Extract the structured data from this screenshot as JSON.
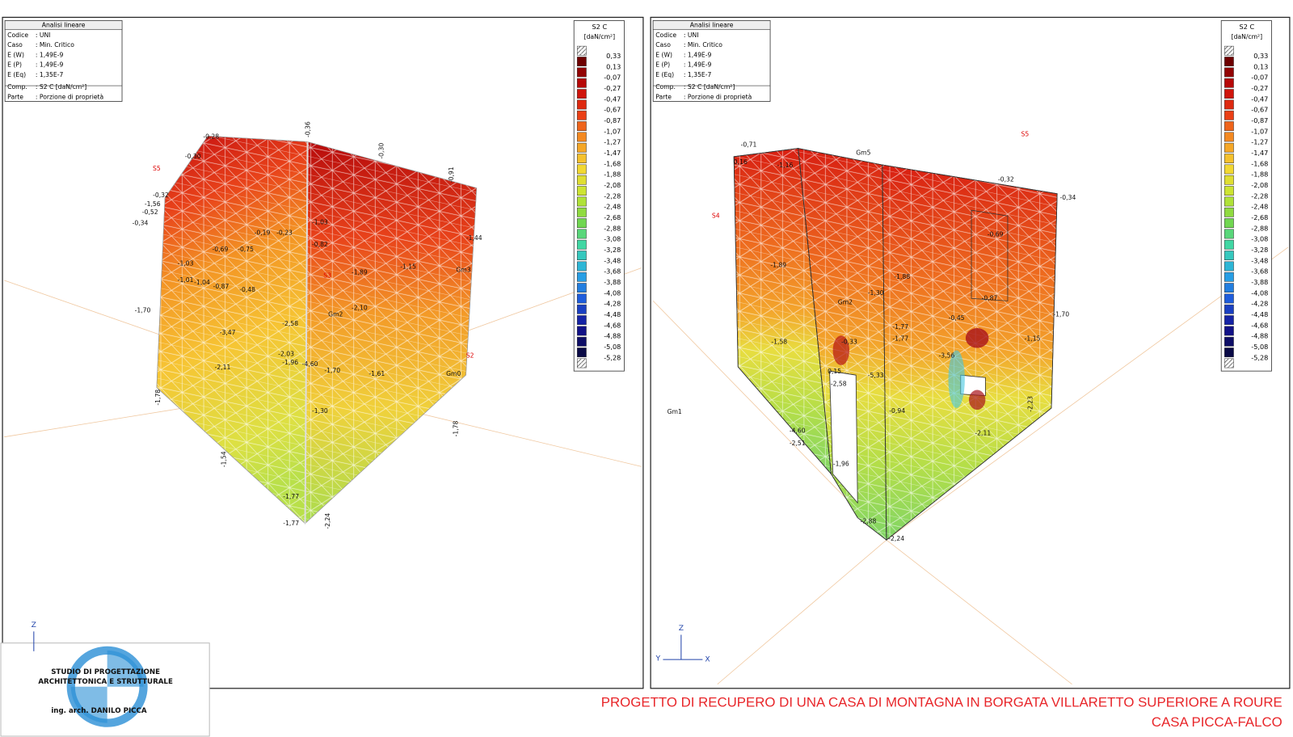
{
  "panels": [
    {
      "info": {
        "title": "Analisi lineare",
        "rows": [
          [
            "Codice",
            ": UNI"
          ],
          [
            "Caso",
            ": Min. Critico"
          ],
          [
            "E (W)",
            ": 1,49E-9"
          ],
          [
            "E (P)",
            ": 1,49E-9"
          ],
          [
            "E (Eq)",
            ": 1,35E-7"
          ],
          [
            "Comp.",
            ": S2 C [daN/cm²]"
          ],
          [
            "Parte",
            ": Porzione di proprietà"
          ]
        ]
      },
      "legend": {
        "title": "S2 C",
        "unit": "[daN/cm²]",
        "levels": [
          "0,33",
          "0,13",
          "-0,07",
          "-0,27",
          "-0,47",
          "-0,67",
          "-0,87",
          "-1,07",
          "-1,27",
          "-1,47",
          "-1,68",
          "-1,88",
          "-2,08",
          "-2,28",
          "-2,48",
          "-2,68",
          "-2,88",
          "-3,08",
          "-3,28",
          "-3,48",
          "-3,68",
          "-3,88",
          "-4,08",
          "-4,28",
          "-4,48",
          "-4,68",
          "-4,88",
          "-5,08",
          "-5,28"
        ]
      },
      "labels": [
        "-0,28",
        "-0,30",
        "S5",
        "-0,32",
        "-1,56",
        "-0,52",
        "-0,34",
        "-0,69",
        "-0,75",
        "-0,19",
        "-0,23",
        "-1,03",
        "-0,82",
        "-1,03",
        "-1,01",
        "-1,04",
        "-0,87",
        "-0,48",
        "S3",
        "-1,89",
        "-1,15",
        "-1,70",
        "-2,58",
        "-2,10",
        "Gm2",
        "-3,47",
        "-2,11",
        "-2,03",
        "-1,96",
        "-4,60",
        "-1,70",
        "-1,61",
        "-1,30",
        "Gm3",
        "-1,44",
        "Gm0",
        "S2",
        "-1,77",
        "-1,77",
        "-1,78",
        "-1,54",
        "-2,24",
        "-1,78",
        "-0,36",
        "-0,30",
        "-0,91"
      ],
      "axes": [
        "Z"
      ]
    },
    {
      "info": {
        "title": "Analisi lineare",
        "rows": [
          [
            "Codice",
            ": UNI"
          ],
          [
            "Caso",
            ": Min. Critico"
          ],
          [
            "E (W)",
            ": 1,49E-9"
          ],
          [
            "E (P)",
            ": 1,49E-9"
          ],
          [
            "E (Eq)",
            ": 1,35E-7"
          ],
          [
            "Comp.",
            ": S2 C [daN/cm²]"
          ],
          [
            "Parte",
            ": Porzione di proprietà"
          ]
        ]
      },
      "legend": {
        "title": "S2 C",
        "unit": "[daN/cm²]",
        "levels": [
          "0,33",
          "0,13",
          "-0,07",
          "-0,27",
          "-0,47",
          "-0,67",
          "-0,87",
          "-1,07",
          "-1,27",
          "-1,47",
          "-1,68",
          "-1,88",
          "-2,08",
          "-2,28",
          "-2,48",
          "-2,68",
          "-2,88",
          "-3,08",
          "-3,28",
          "-3,48",
          "-3,68",
          "-3,88",
          "-4,08",
          "-4,28",
          "-4,48",
          "-4,68",
          "-4,88",
          "-5,08",
          "-5,28"
        ]
      },
      "labels": [
        "-0,71",
        "0,16",
        "-1,16",
        "Gm5",
        "S5",
        "-0,32",
        "-0,34",
        "S4",
        "-1,89",
        "Gm2",
        "-0,33",
        "-1,30",
        "-1,88",
        "-0,69",
        "-0,87",
        "-0,45",
        "-1,70",
        "-1,77",
        "-1,77",
        "-3,56",
        "-1,15",
        "0,15",
        "-2,58",
        "-5,33",
        "-0,94",
        "-2,11",
        "-1,58",
        "-4,60",
        "-2,51",
        "-1,96",
        "-2,88",
        "-2,24",
        "Gm1",
        "-2,23"
      ],
      "axes": [
        "Z",
        "Y",
        "X"
      ]
    }
  ],
  "footer": {
    "logo": [
      "STUDIO DI PROGETTAZIONE",
      "ARCHITETTONICA E STRUTTURALE",
      "ing. arch. DANILO PICCA"
    ],
    "title": "PROGETTO DI RECUPERO DI UNA CASA DI MONTAGNA IN BORGATA VILLARETTO SUPERIORE A ROURE",
    "subtitle": "CASA PICCA-FALCO"
  }
}
